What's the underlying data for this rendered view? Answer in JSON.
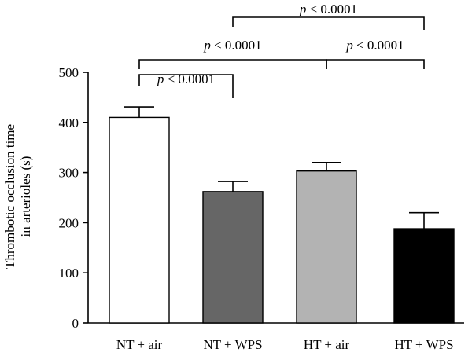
{
  "chart_data": {
    "type": "bar",
    "ylabel_line1": "Thrombotic occlusion time",
    "ylabel_line2": "in arterioles (s)",
    "ylim": [
      0,
      500
    ],
    "yticks": [
      0,
      100,
      200,
      300,
      400,
      500
    ],
    "categories": [
      "NT + air",
      "NT + WPS",
      "HT + air",
      "HT + WPS"
    ],
    "values": [
      410,
      262,
      303,
      188
    ],
    "errors": [
      21,
      20,
      17,
      32
    ],
    "colors": [
      "#ffffff",
      "#666666",
      "#b3b3b3",
      "#000000"
    ],
    "comparisons": [
      {
        "from": 0,
        "to": 1,
        "p_symbol": "p",
        "text": " < 0.0001"
      },
      {
        "from": 0,
        "to": 2,
        "p_symbol": "p",
        "text": " < 0.0001"
      },
      {
        "from": 2,
        "to": 3,
        "p_symbol": "p",
        "text": " < 0.0001"
      },
      {
        "from": 1,
        "to": 3,
        "p_symbol": "p",
        "text": " < 0.0001"
      }
    ]
  }
}
